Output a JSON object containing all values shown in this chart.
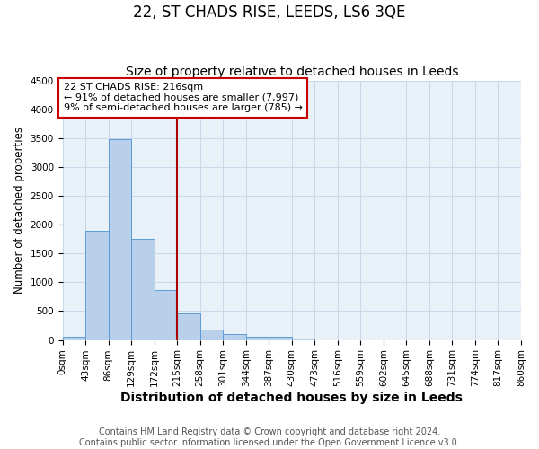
{
  "title": "22, ST CHADS RISE, LEEDS, LS6 3QE",
  "subtitle": "Size of property relative to detached houses in Leeds",
  "xlabel": "Distribution of detached houses by size in Leeds",
  "ylabel": "Number of detached properties",
  "bin_edges": [
    0,
    43,
    86,
    129,
    172,
    215,
    258,
    301,
    344,
    387,
    430,
    473,
    516,
    559,
    602,
    645,
    688,
    731,
    774,
    817,
    860
  ],
  "bar_heights": [
    50,
    1900,
    3480,
    1760,
    870,
    460,
    180,
    100,
    60,
    50,
    30,
    0,
    0,
    0,
    0,
    0,
    0,
    0,
    0,
    0
  ],
  "bar_color": "#b8d0ea",
  "bar_edge_color": "#5b9bd5",
  "ylim": [
    0,
    4500
  ],
  "yticks": [
    0,
    500,
    1000,
    1500,
    2000,
    2500,
    3000,
    3500,
    4000,
    4500
  ],
  "vline_x": 215,
  "vline_color": "#aa0000",
  "annotation_title": "22 ST CHADS RISE: 216sqm",
  "annotation_line1": "← 91% of detached houses are smaller (7,997)",
  "annotation_line2": "9% of semi-detached houses are larger (785) →",
  "annotation_box_color": "#ffffff",
  "annotation_box_edge_color": "#cc0000",
  "footer_line1": "Contains HM Land Registry data © Crown copyright and database right 2024.",
  "footer_line2": "Contains public sector information licensed under the Open Government Licence v3.0.",
  "background_color": "#ffffff",
  "grid_color": "#c8d8e8",
  "title_fontsize": 12,
  "subtitle_fontsize": 10,
  "xlabel_fontsize": 10,
  "ylabel_fontsize": 8.5,
  "tick_fontsize": 7.5,
  "annotation_fontsize": 8,
  "footer_fontsize": 7
}
